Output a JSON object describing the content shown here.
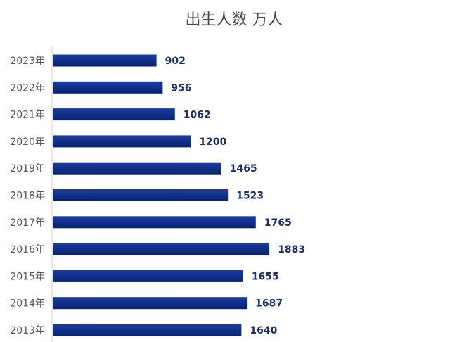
{
  "chart_data": {
    "type": "bar",
    "orientation": "horizontal",
    "title": "出生人数 万人",
    "categories": [
      "2023年",
      "2022年",
      "2021年",
      "2020年",
      "2019年",
      "2018年",
      "2017年",
      "2016年",
      "2015年",
      "2014年",
      "2013年"
    ],
    "values": [
      902,
      956,
      1062,
      1200,
      1465,
      1523,
      1765,
      1883,
      1655,
      1687,
      1640
    ],
    "data_labels": [
      "902",
      "956",
      "1062",
      "1200",
      "1465",
      "1523",
      "1765",
      "1883",
      "1655",
      "1687",
      "1640"
    ],
    "xlim": [
      0,
      3300
    ],
    "grid": false,
    "legend": "none",
    "bar_color": "#0b2a80"
  }
}
